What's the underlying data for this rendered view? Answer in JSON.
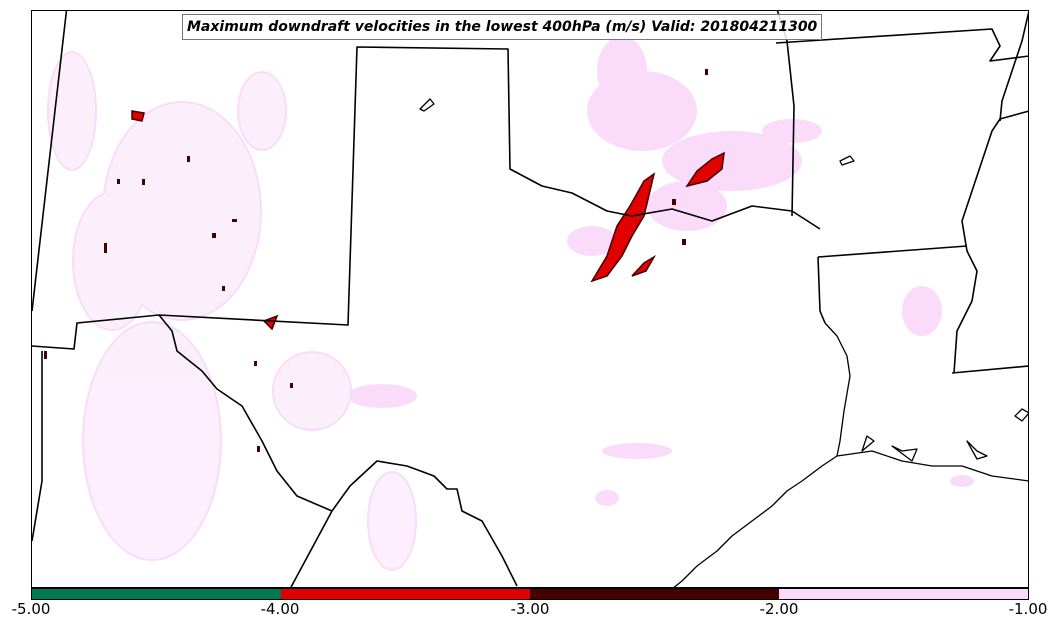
{
  "title": "Maximum downdraft velocities in the lowest 400hPa (m/s) Valid: 201804211300",
  "colorbar": {
    "ticks": [
      "-5.00",
      "-4.00",
      "-3.00",
      "-2.00",
      "-1.00"
    ],
    "bins": [
      {
        "from": -5.0,
        "to": -4.0,
        "color": "#007a50"
      },
      {
        "from": -4.0,
        "to": -3.0,
        "color": "#e00000"
      },
      {
        "from": -3.0,
        "to": -2.0,
        "color": "#450000"
      },
      {
        "from": -2.0,
        "to": -1.0,
        "color": "#fadcfa"
      }
    ]
  },
  "colors": {
    "weak_downdraft": "#fadcfa",
    "moderate_downdraft": "#450000",
    "strong_downdraft": "#e00000",
    "extreme_downdraft": "#007a50",
    "boundaries": "#000000"
  }
}
